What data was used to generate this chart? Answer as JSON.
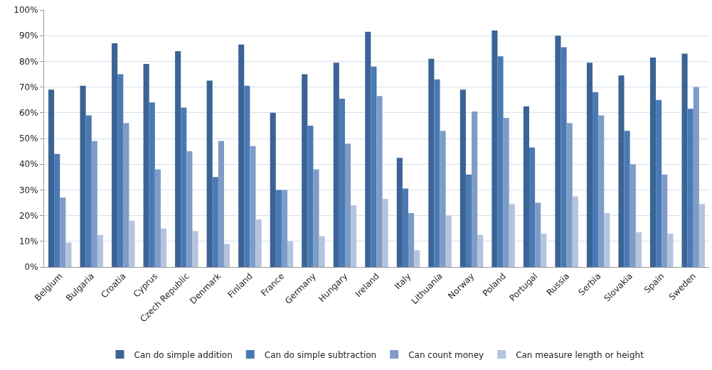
{
  "chart_data": {
    "type": "bar",
    "categories": [
      "Belgium",
      "Bulgaria",
      "Croatia",
      "Cyprus",
      "Czech Republic",
      "Denmark",
      "Finland",
      "France",
      "Germany",
      "Hungary",
      "Ireland",
      "Italy",
      "Lithuania",
      "Norway",
      "Poland",
      "Portugal",
      "Russia",
      "Serbia",
      "Slovakia",
      "Spain",
      "Sweden"
    ],
    "series": [
      {
        "name": "Can do simple addition",
        "color": "#3b6496",
        "values": [
          69,
          70.5,
          87,
          79,
          84,
          72.5,
          86.5,
          60,
          75,
          79.5,
          91.5,
          42.5,
          81,
          69,
          92,
          62.5,
          90,
          79.5,
          74.5,
          81.5,
          83
        ]
      },
      {
        "name": "Can do simple subtraction",
        "color": "#4a7ab4",
        "values": [
          44,
          59,
          75,
          64,
          62,
          35,
          70.5,
          30,
          55,
          65.5,
          78,
          30.5,
          73,
          36,
          82,
          46.5,
          85.5,
          68,
          53,
          65,
          61.5
        ]
      },
      {
        "name": "Can count money",
        "color": "#7f9cc8",
        "values": [
          27,
          49,
          56,
          38,
          45,
          49,
          47,
          30,
          38,
          48,
          66.5,
          21,
          53,
          60.5,
          58,
          25,
          56,
          59,
          40,
          36,
          70
        ]
      },
      {
        "name": "Can measure length or height",
        "color": "#b4c4de",
        "values": [
          9.5,
          12.5,
          18,
          15,
          14,
          9,
          18.5,
          10,
          12,
          24,
          26.5,
          6.5,
          20,
          12.5,
          24.5,
          13,
          27.5,
          21,
          13.5,
          13,
          24.5
        ]
      }
    ],
    "ylim": [
      0,
      100
    ],
    "yticks": [
      {
        "value": 0,
        "label": "0%"
      },
      {
        "value": 10,
        "label": "10%"
      },
      {
        "value": 20,
        "label": "20%"
      },
      {
        "value": 30,
        "label": "30%"
      },
      {
        "value": 40,
        "label": "40%"
      },
      {
        "value": 50,
        "label": "50%"
      },
      {
        "value": 60,
        "label": "60%"
      },
      {
        "value": 70,
        "label": "70%"
      },
      {
        "value": 80,
        "label": "80%"
      },
      {
        "value": 90,
        "label": "90%"
      },
      {
        "value": 100,
        "label": "100%"
      }
    ],
    "grid": "y",
    "legend": "bottom"
  }
}
